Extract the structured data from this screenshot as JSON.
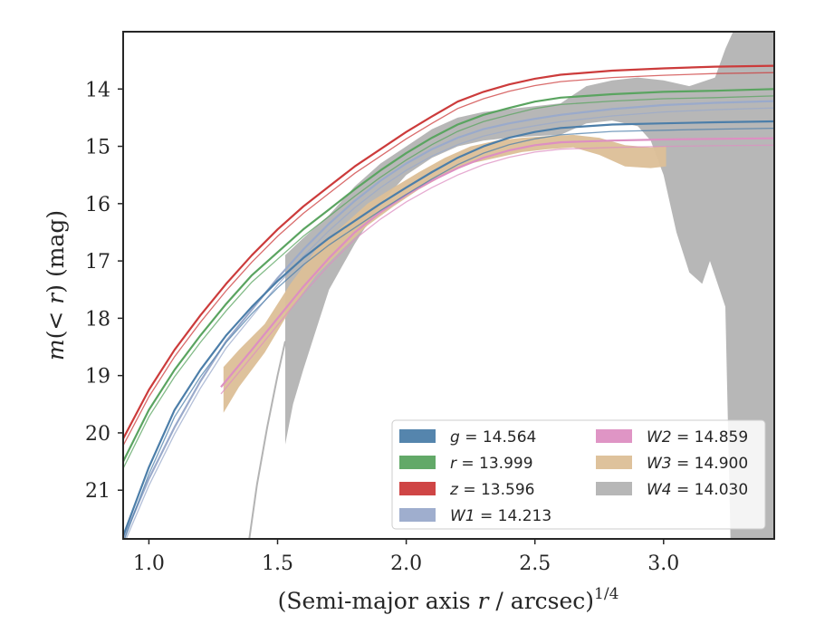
{
  "chart_data": {
    "type": "line",
    "xlabel": "(Semi-major axis r / arcsec)^{1/4}",
    "xlabel_parts": {
      "prefix": "(Semi-major axis ",
      "var": "r",
      "mid": " / arcsec)",
      "sup": "1/4"
    },
    "ylabel": "m(< r) (mag)",
    "ylabel_parts": {
      "m": "m",
      "open": "(",
      "lt": "< ",
      "r": "r",
      "close": ")",
      "unit": " (mag)"
    },
    "xlim": [
      0.9,
      3.43
    ],
    "ylim": [
      21.85,
      13.0
    ],
    "y_inverted": true,
    "xticks": [
      "1.0",
      "1.5",
      "2.0",
      "2.5",
      "3.0"
    ],
    "xtick_values": [
      1.0,
      1.5,
      2.0,
      2.5,
      3.0
    ],
    "yticks": [
      "14",
      "15",
      "16",
      "17",
      "18",
      "19",
      "20",
      "21"
    ],
    "ytick_values": [
      14,
      15,
      16,
      17,
      18,
      19,
      20,
      21
    ],
    "legend_placement": "lower-right",
    "legend_columns": 2,
    "series": [
      {
        "name": "g = 14.564",
        "var": "g",
        "value": "14.564",
        "color": "#4c7ea9",
        "kind": "line",
        "points": [
          [
            0.9,
            21.8
          ],
          [
            1.0,
            20.6
          ],
          [
            1.1,
            19.6
          ],
          [
            1.2,
            18.9
          ],
          [
            1.3,
            18.3
          ],
          [
            1.4,
            17.8
          ],
          [
            1.5,
            17.35
          ],
          [
            1.6,
            16.95
          ],
          [
            1.7,
            16.6
          ],
          [
            1.8,
            16.3
          ],
          [
            1.9,
            16.0
          ],
          [
            2.0,
            15.72
          ],
          [
            2.1,
            15.45
          ],
          [
            2.2,
            15.2
          ],
          [
            2.3,
            15.0
          ],
          [
            2.4,
            14.85
          ],
          [
            2.5,
            14.75
          ],
          [
            2.6,
            14.68
          ],
          [
            2.8,
            14.62
          ],
          [
            3.0,
            14.6
          ],
          [
            3.2,
            14.58
          ],
          [
            3.43,
            14.565
          ]
        ]
      },
      {
        "name": "r = 13.999",
        "var": "r",
        "value": "13.999",
        "color": "#5aa460",
        "kind": "line",
        "points": [
          [
            0.9,
            20.5
          ],
          [
            1.0,
            19.6
          ],
          [
            1.1,
            18.9
          ],
          [
            1.2,
            18.3
          ],
          [
            1.3,
            17.75
          ],
          [
            1.4,
            17.25
          ],
          [
            1.5,
            16.85
          ],
          [
            1.6,
            16.45
          ],
          [
            1.7,
            16.1
          ],
          [
            1.8,
            15.75
          ],
          [
            1.9,
            15.42
          ],
          [
            2.0,
            15.12
          ],
          [
            2.1,
            14.85
          ],
          [
            2.2,
            14.62
          ],
          [
            2.3,
            14.45
          ],
          [
            2.4,
            14.33
          ],
          [
            2.5,
            14.22
          ],
          [
            2.6,
            14.15
          ],
          [
            2.8,
            14.09
          ],
          [
            3.0,
            14.05
          ],
          [
            3.2,
            14.03
          ],
          [
            3.43,
            14.0
          ]
        ]
      },
      {
        "name": "z = 13.596",
        "var": "z",
        "value": "13.596",
        "color": "#cc3b3b",
        "kind": "line",
        "points": [
          [
            0.9,
            20.1
          ],
          [
            1.0,
            19.25
          ],
          [
            1.1,
            18.55
          ],
          [
            1.2,
            17.95
          ],
          [
            1.3,
            17.4
          ],
          [
            1.4,
            16.9
          ],
          [
            1.5,
            16.45
          ],
          [
            1.6,
            16.05
          ],
          [
            1.7,
            15.7
          ],
          [
            1.8,
            15.35
          ],
          [
            1.9,
            15.05
          ],
          [
            2.0,
            14.75
          ],
          [
            2.1,
            14.48
          ],
          [
            2.2,
            14.22
          ],
          [
            2.3,
            14.05
          ],
          [
            2.4,
            13.92
          ],
          [
            2.5,
            13.82
          ],
          [
            2.6,
            13.75
          ],
          [
            2.8,
            13.68
          ],
          [
            3.0,
            13.64
          ],
          [
            3.2,
            13.61
          ],
          [
            3.43,
            13.595
          ]
        ]
      },
      {
        "name": "W1 = 14.213",
        "var": "W1",
        "value": "14.213",
        "color": "#9aaacb",
        "kind": "line",
        "points": [
          [
            0.9,
            21.85
          ],
          [
            1.0,
            20.8
          ],
          [
            1.1,
            19.9
          ],
          [
            1.2,
            19.1
          ],
          [
            1.3,
            18.4
          ],
          [
            1.4,
            17.85
          ],
          [
            1.5,
            17.3
          ],
          [
            1.6,
            16.8
          ],
          [
            1.7,
            16.35
          ],
          [
            1.8,
            15.95
          ],
          [
            1.9,
            15.6
          ],
          [
            2.0,
            15.3
          ],
          [
            2.1,
            15.05
          ],
          [
            2.2,
            14.85
          ],
          [
            2.3,
            14.7
          ],
          [
            2.4,
            14.6
          ],
          [
            2.5,
            14.52
          ],
          [
            2.6,
            14.45
          ],
          [
            2.8,
            14.35
          ],
          [
            3.0,
            14.28
          ],
          [
            3.2,
            14.24
          ],
          [
            3.43,
            14.21
          ]
        ]
      },
      {
        "name": "W2 = 14.859",
        "var": "W2",
        "value": "14.859",
        "color": "#dd8fc2",
        "kind": "line",
        "points": [
          [
            1.28,
            19.2
          ],
          [
            1.4,
            18.55
          ],
          [
            1.5,
            18.0
          ],
          [
            1.6,
            17.45
          ],
          [
            1.7,
            16.95
          ],
          [
            1.8,
            16.5
          ],
          [
            1.9,
            16.15
          ],
          [
            2.0,
            15.85
          ],
          [
            2.1,
            15.6
          ],
          [
            2.2,
            15.38
          ],
          [
            2.3,
            15.2
          ],
          [
            2.4,
            15.07
          ],
          [
            2.5,
            14.98
          ],
          [
            2.6,
            14.93
          ],
          [
            2.8,
            14.9
          ],
          [
            3.0,
            14.88
          ],
          [
            3.2,
            14.87
          ],
          [
            3.43,
            14.86
          ]
        ]
      },
      {
        "name": "W3 = 14.900",
        "var": "W3",
        "value": "14.900",
        "color": "#dcbf97",
        "kind": "band",
        "points": [
          [
            1.29,
            19.1
          ],
          [
            1.35,
            18.8
          ],
          [
            1.45,
            18.3
          ],
          [
            1.55,
            17.6
          ],
          [
            1.65,
            17.0
          ],
          [
            1.75,
            16.6
          ],
          [
            1.85,
            16.2
          ],
          [
            1.95,
            15.9
          ],
          [
            2.05,
            15.6
          ],
          [
            2.15,
            15.35
          ],
          [
            2.25,
            15.15
          ],
          [
            2.35,
            15.05
          ],
          [
            2.45,
            14.98
          ],
          [
            2.55,
            14.94
          ],
          [
            2.65,
            14.92
          ],
          [
            2.75,
            15.0
          ],
          [
            2.85,
            15.15
          ],
          [
            2.95,
            15.2
          ],
          [
            3.01,
            15.25
          ]
        ],
        "upper": [
          [
            1.29,
            18.85
          ],
          [
            1.35,
            18.55
          ],
          [
            1.45,
            18.1
          ],
          [
            1.55,
            17.4
          ],
          [
            1.65,
            16.8
          ],
          [
            1.75,
            16.4
          ],
          [
            1.85,
            16.0
          ],
          [
            1.95,
            15.72
          ],
          [
            2.05,
            15.45
          ],
          [
            2.15,
            15.2
          ],
          [
            2.25,
            15.0
          ],
          [
            2.35,
            14.9
          ],
          [
            2.45,
            14.85
          ],
          [
            2.55,
            14.82
          ],
          [
            2.65,
            14.8
          ],
          [
            2.75,
            14.85
          ],
          [
            2.85,
            14.98
          ],
          [
            2.95,
            15.02
          ],
          [
            3.01,
            15.0
          ]
        ],
        "lower": [
          [
            1.29,
            19.65
          ],
          [
            1.35,
            19.2
          ],
          [
            1.45,
            18.6
          ],
          [
            1.55,
            17.85
          ],
          [
            1.65,
            17.25
          ],
          [
            1.75,
            16.8
          ],
          [
            1.85,
            16.38
          ],
          [
            1.95,
            16.05
          ],
          [
            2.05,
            15.75
          ],
          [
            2.15,
            15.5
          ],
          [
            2.25,
            15.3
          ],
          [
            2.35,
            15.2
          ],
          [
            2.45,
            15.1
          ],
          [
            2.55,
            15.05
          ],
          [
            2.65,
            15.02
          ],
          [
            2.75,
            15.15
          ],
          [
            2.85,
            15.35
          ],
          [
            2.95,
            15.38
          ],
          [
            3.01,
            15.35
          ]
        ]
      },
      {
        "name": "W4 = 14.030",
        "var": "W4",
        "value": "14.030",
        "color": "#b3b3b3",
        "kind": "band",
        "upper": [
          [
            1.53,
            16.9
          ],
          [
            1.6,
            16.6
          ],
          [
            1.7,
            16.2
          ],
          [
            1.8,
            15.7
          ],
          [
            1.9,
            15.3
          ],
          [
            2.0,
            15.0
          ],
          [
            2.1,
            14.7
          ],
          [
            2.2,
            14.5
          ],
          [
            2.3,
            14.4
          ],
          [
            2.4,
            14.35
          ],
          [
            2.5,
            14.3
          ],
          [
            2.6,
            14.25
          ],
          [
            2.7,
            13.95
          ],
          [
            2.8,
            13.85
          ],
          [
            2.9,
            13.8
          ],
          [
            3.0,
            13.85
          ],
          [
            3.1,
            13.95
          ],
          [
            3.2,
            13.8
          ],
          [
            3.24,
            13.3
          ],
          [
            3.27,
            13.0
          ],
          [
            3.43,
            13.0
          ]
        ],
        "lower": [
          [
            1.53,
            20.2
          ],
          [
            1.56,
            19.5
          ],
          [
            1.6,
            18.9
          ],
          [
            1.65,
            18.2
          ],
          [
            1.7,
            17.5
          ],
          [
            1.8,
            16.7
          ],
          [
            1.9,
            16.0
          ],
          [
            2.0,
            15.5
          ],
          [
            2.1,
            15.2
          ],
          [
            2.2,
            15.0
          ],
          [
            2.3,
            14.9
          ],
          [
            2.4,
            14.85
          ],
          [
            2.5,
            14.82
          ],
          [
            2.6,
            14.8
          ],
          [
            2.7,
            14.6
          ],
          [
            2.8,
            14.55
          ],
          [
            2.9,
            14.65
          ],
          [
            2.95,
            14.9
          ],
          [
            3.0,
            15.5
          ],
          [
            3.05,
            16.5
          ],
          [
            3.1,
            17.2
          ],
          [
            3.15,
            17.4
          ],
          [
            3.18,
            17.0
          ],
          [
            3.21,
            17.4
          ],
          [
            3.24,
            17.8
          ],
          [
            3.26,
            21.85
          ],
          [
            3.43,
            21.85
          ]
        ],
        "faint_line": [
          [
            1.39,
            21.85
          ],
          [
            1.42,
            20.9
          ],
          [
            1.46,
            19.9
          ],
          [
            1.5,
            19.0
          ],
          [
            1.53,
            18.4
          ]
        ]
      }
    ]
  }
}
